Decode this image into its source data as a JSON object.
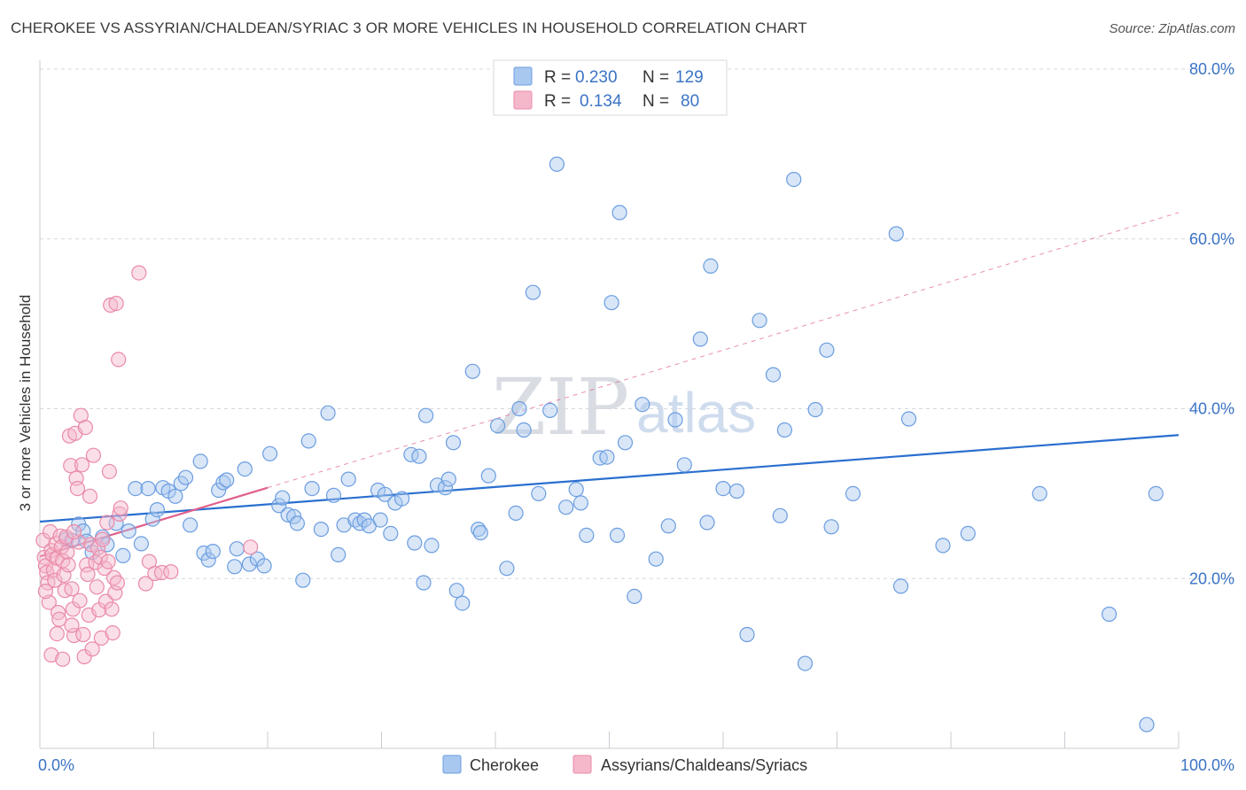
{
  "header": {
    "title": "CHEROKEE VS ASSYRIAN/CHALDEAN/SYRIAC 3 OR MORE VEHICLES IN HOUSEHOLD CORRELATION CHART",
    "source": "Source: ZipAtlas.com"
  },
  "watermark": {
    "zip": "ZIP",
    "atlas": "atlas"
  },
  "legend_top": {
    "rows": [
      {
        "r_label": "R =",
        "r_value": "0.230",
        "n_label": "N =",
        "n_value": "129"
      },
      {
        "r_label": "R =",
        "r_value": "0.134",
        "n_label": "N =",
        "n_value": "80"
      }
    ]
  },
  "colors": {
    "cherokee_fill": "#a8c8f0",
    "cherokee_stroke": "#6b9de0",
    "cherokee_line": "#2a6fcf",
    "assyrian_fill": "#f5b8cb",
    "assyrian_stroke": "#ea8aa8",
    "assyrian_line": "#e0608c",
    "grid": "#d4d8de",
    "tick_label": "#3a73c6"
  },
  "chart_data": {
    "type": "scatter",
    "title": "CHEROKEE VS ASSYRIAN/CHALDEAN/SYRIAC 3 OR MORE VEHICLES IN HOUSEHOLD CORRELATION CHART",
    "xlabel": "",
    "ylabel": "3 or more Vehicles in Household",
    "xlim": [
      0,
      100
    ],
    "ylim": [
      0,
      80
    ],
    "x_tick_labels": [
      "0.0%",
      "100.0%"
    ],
    "y_ticks": [
      20,
      40,
      60,
      80
    ],
    "y_tick_labels": [
      "20.0%",
      "40.0%",
      "60.0%",
      "80.0%"
    ],
    "grid": "horizontal dashed",
    "legend_position": "top-center",
    "series": [
      {
        "name": "Cherokee",
        "r": 0.23,
        "n": 129,
        "trend": {
          "x": [
            0,
            100
          ],
          "y": [
            26.7,
            36.9
          ]
        },
        "points": [
          [
            2.3,
            24.6
          ],
          [
            2.8,
            24.5
          ],
          [
            3.4,
            26.4
          ],
          [
            3.8,
            25.6
          ],
          [
            4.1,
            24.4
          ],
          [
            4.6,
            23.1
          ],
          [
            5.5,
            24.9
          ],
          [
            5.9,
            24.0
          ],
          [
            6.7,
            26.5
          ],
          [
            7.3,
            22.7
          ],
          [
            7.8,
            25.6
          ],
          [
            8.4,
            30.6
          ],
          [
            8.9,
            24.1
          ],
          [
            9.5,
            30.6
          ],
          [
            9.9,
            27.0
          ],
          [
            10.3,
            28.1
          ],
          [
            10.8,
            30.7
          ],
          [
            11.3,
            30.3
          ],
          [
            11.9,
            29.7
          ],
          [
            12.4,
            31.2
          ],
          [
            12.8,
            31.9
          ],
          [
            13.2,
            26.3
          ],
          [
            14.1,
            33.8
          ],
          [
            14.4,
            23.0
          ],
          [
            14.8,
            22.2
          ],
          [
            15.2,
            23.2
          ],
          [
            15.7,
            30.4
          ],
          [
            16.1,
            31.3
          ],
          [
            16.4,
            31.6
          ],
          [
            17.1,
            21.4
          ],
          [
            17.3,
            23.5
          ],
          [
            18.0,
            32.9
          ],
          [
            18.4,
            21.7
          ],
          [
            19.1,
            22.3
          ],
          [
            19.7,
            21.5
          ],
          [
            20.2,
            34.7
          ],
          [
            21.0,
            28.6
          ],
          [
            21.3,
            29.5
          ],
          [
            21.8,
            27.5
          ],
          [
            22.3,
            27.3
          ],
          [
            22.6,
            26.5
          ],
          [
            23.1,
            19.8
          ],
          [
            23.6,
            36.2
          ],
          [
            23.9,
            30.6
          ],
          [
            24.7,
            25.8
          ],
          [
            25.3,
            39.5
          ],
          [
            25.8,
            29.8
          ],
          [
            26.2,
            22.8
          ],
          [
            26.7,
            26.3
          ],
          [
            27.1,
            31.7
          ],
          [
            27.7,
            26.9
          ],
          [
            28.1,
            26.5
          ],
          [
            28.5,
            26.9
          ],
          [
            28.9,
            26.2
          ],
          [
            29.7,
            30.4
          ],
          [
            29.9,
            26.9
          ],
          [
            30.3,
            29.9
          ],
          [
            30.8,
            25.3
          ],
          [
            31.2,
            28.9
          ],
          [
            31.8,
            29.4
          ],
          [
            32.6,
            34.6
          ],
          [
            32.9,
            24.2
          ],
          [
            33.3,
            34.4
          ],
          [
            33.7,
            19.5
          ],
          [
            33.9,
            39.2
          ],
          [
            34.4,
            23.9
          ],
          [
            34.9,
            31.0
          ],
          [
            35.6,
            30.7
          ],
          [
            35.9,
            31.7
          ],
          [
            36.3,
            36.0
          ],
          [
            36.6,
            18.6
          ],
          [
            37.1,
            17.1
          ],
          [
            38.0,
            44.4
          ],
          [
            38.5,
            25.8
          ],
          [
            38.7,
            25.4
          ],
          [
            39.4,
            32.1
          ],
          [
            40.2,
            38.0
          ],
          [
            41.0,
            21.2
          ],
          [
            41.8,
            27.7
          ],
          [
            42.1,
            40.0
          ],
          [
            42.5,
            37.5
          ],
          [
            43.3,
            53.7
          ],
          [
            43.8,
            30.0
          ],
          [
            44.8,
            39.8
          ],
          [
            45.4,
            68.8
          ],
          [
            46.2,
            28.4
          ],
          [
            47.1,
            30.5
          ],
          [
            47.5,
            28.9
          ],
          [
            48.0,
            25.1
          ],
          [
            49.2,
            34.2
          ],
          [
            49.8,
            34.3
          ],
          [
            50.2,
            52.5
          ],
          [
            50.7,
            25.1
          ],
          [
            50.9,
            63.1
          ],
          [
            51.4,
            36.0
          ],
          [
            52.2,
            17.9
          ],
          [
            52.9,
            40.5
          ],
          [
            54.1,
            22.3
          ],
          [
            55.2,
            26.2
          ],
          [
            55.8,
            38.7
          ],
          [
            56.6,
            33.4
          ],
          [
            58.0,
            48.2
          ],
          [
            58.6,
            26.6
          ],
          [
            58.9,
            56.8
          ],
          [
            60.0,
            30.6
          ],
          [
            61.2,
            30.3
          ],
          [
            62.1,
            13.4
          ],
          [
            63.2,
            50.4
          ],
          [
            64.4,
            44.0
          ],
          [
            65.0,
            27.4
          ],
          [
            65.4,
            37.5
          ],
          [
            66.2,
            67.0
          ],
          [
            67.2,
            10.0
          ],
          [
            68.1,
            39.9
          ],
          [
            69.1,
            46.9
          ],
          [
            69.5,
            26.1
          ],
          [
            71.4,
            30.0
          ],
          [
            75.2,
            60.6
          ],
          [
            75.6,
            19.1
          ],
          [
            76.3,
            38.8
          ],
          [
            79.3,
            23.9
          ],
          [
            81.5,
            25.3
          ],
          [
            87.8,
            30.0
          ],
          [
            93.9,
            15.8
          ],
          [
            97.2,
            2.8
          ],
          [
            98.0,
            30.0
          ]
        ]
      },
      {
        "name": "Assyrians/Chaldeans/Syriacs",
        "r": 0.134,
        "n": 80,
        "trend": {
          "x": [
            0,
            20
          ],
          "y": [
            22.6,
            30.7
          ]
        },
        "points": [
          [
            0.3,
            24.5
          ],
          [
            0.4,
            22.5
          ],
          [
            0.5,
            21.5
          ],
          [
            0.6,
            20.7
          ],
          [
            0.7,
            19.5
          ],
          [
            0.8,
            17.2
          ],
          [
            0.9,
            25.5
          ],
          [
            1.0,
            23.3
          ],
          [
            1.1,
            22.8
          ],
          [
            1.2,
            21.0
          ],
          [
            1.3,
            19.8
          ],
          [
            1.4,
            24.1
          ],
          [
            1.5,
            22.4
          ],
          [
            1.6,
            16.0
          ],
          [
            1.7,
            15.2
          ],
          [
            1.8,
            25.0
          ],
          [
            1.9,
            23.7
          ],
          [
            2.0,
            22.1
          ],
          [
            2.1,
            20.4
          ],
          [
            2.2,
            18.6
          ],
          [
            2.3,
            24.9
          ],
          [
            2.4,
            23.1
          ],
          [
            2.5,
            21.6
          ],
          [
            2.6,
            36.8
          ],
          [
            2.7,
            33.3
          ],
          [
            2.8,
            18.8
          ],
          [
            2.9,
            16.4
          ],
          [
            3.0,
            13.3
          ],
          [
            3.1,
            37.1
          ],
          [
            3.2,
            31.8
          ],
          [
            3.3,
            30.6
          ],
          [
            3.4,
            24.3
          ],
          [
            3.5,
            17.4
          ],
          [
            3.6,
            39.2
          ],
          [
            3.7,
            33.4
          ],
          [
            3.8,
            13.4
          ],
          [
            3.9,
            10.8
          ],
          [
            4.0,
            37.8
          ],
          [
            4.1,
            21.6
          ],
          [
            4.2,
            20.5
          ],
          [
            4.3,
            15.7
          ],
          [
            4.4,
            29.7
          ],
          [
            4.5,
            24.0
          ],
          [
            4.6,
            11.7
          ],
          [
            4.7,
            34.5
          ],
          [
            4.9,
            21.9
          ],
          [
            5.1,
            23.6
          ],
          [
            5.2,
            16.3
          ],
          [
            5.3,
            22.5
          ],
          [
            5.4,
            13.0
          ],
          [
            5.5,
            24.6
          ],
          [
            5.7,
            21.2
          ],
          [
            5.8,
            17.3
          ],
          [
            5.9,
            26.6
          ],
          [
            6.0,
            22.0
          ],
          [
            6.1,
            32.6
          ],
          [
            6.2,
            52.2
          ],
          [
            6.3,
            16.4
          ],
          [
            6.4,
            13.6
          ],
          [
            6.5,
            20.1
          ],
          [
            6.6,
            18.3
          ],
          [
            6.7,
            52.4
          ],
          [
            6.8,
            19.5
          ],
          [
            6.9,
            45.8
          ],
          [
            7.0,
            27.6
          ],
          [
            7.1,
            28.3
          ],
          [
            8.7,
            56.0
          ],
          [
            9.3,
            19.4
          ],
          [
            9.6,
            22.0
          ],
          [
            10.1,
            20.6
          ],
          [
            10.7,
            20.7
          ],
          [
            11.5,
            20.8
          ],
          [
            18.5,
            23.7
          ],
          [
            1.0,
            11.0
          ],
          [
            1.5,
            13.5
          ],
          [
            2.0,
            10.5
          ],
          [
            2.8,
            14.5
          ],
          [
            0.5,
            18.5
          ],
          [
            3.0,
            25.5
          ],
          [
            5.0,
            19.0
          ]
        ]
      }
    ]
  },
  "legend_bottom": {
    "items": [
      {
        "label": "Cherokee"
      },
      {
        "label": "Assyrians/Chaldeans/Syriacs"
      }
    ]
  }
}
